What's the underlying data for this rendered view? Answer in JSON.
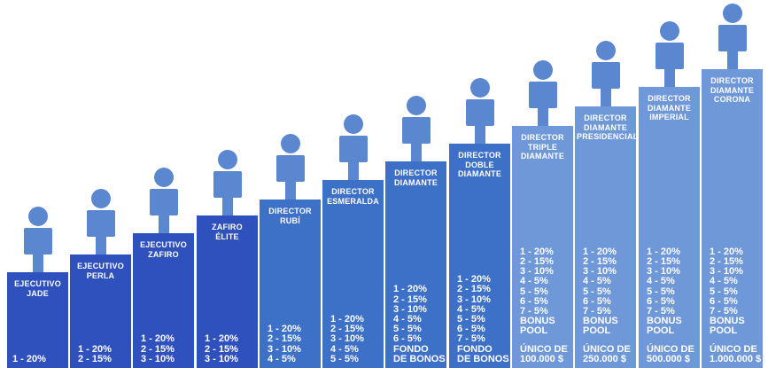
{
  "colors": {
    "dark": "#2f51bd",
    "mid": "#3d70c7",
    "light": "#6f98d9",
    "person": "#5b86d0",
    "background": "#ffffff"
  },
  "ranks": [
    {
      "title": "EJECUTIVO\nJADE",
      "lines": [],
      "extra": [],
      "bottom": [
        "1 - 20%"
      ],
      "shade": "dark"
    },
    {
      "title": "EJECUTIVO\nPERLA",
      "lines": [],
      "extra": [],
      "bottom": [
        "1 - 20%",
        "2 - 15%"
      ],
      "shade": "dark"
    },
    {
      "title": "EJECUTIVO\nZAFIRO",
      "lines": [
        "1 - 20%",
        "2 - 15%",
        "3 - 10%"
      ],
      "extra": [],
      "bottom": [],
      "shade": "dark"
    },
    {
      "title": "ZAFIRO\nÉLITE",
      "lines": [
        "1 - 20%",
        "2 - 15%",
        "3 - 10%"
      ],
      "extra": [],
      "bottom": [],
      "shade": "dark"
    },
    {
      "title": "DIRECTOR\nRUBÍ",
      "lines": [
        "1 - 20%",
        "2 - 15%",
        "3 - 10%",
        "4 - 5%"
      ],
      "extra": [],
      "bottom": [],
      "shade": "mid"
    },
    {
      "title": "DIRECTOR\nESMERALDA",
      "lines": [
        "1 - 20%",
        "2 - 15%",
        "3 - 10%",
        "4 - 5%",
        "5 - 5%"
      ],
      "extra": [],
      "bottom": [],
      "shade": "mid"
    },
    {
      "title": "DIRECTOR\nDIAMANTE",
      "lines": [
        "1 - 20%",
        "2 - 15%",
        "3 - 10%",
        "4 - 5%",
        "5 - 5%",
        "6 - 5%"
      ],
      "extra": [
        "FONDO",
        "DE BONOS"
      ],
      "bottom": [],
      "shade": "mid"
    },
    {
      "title": "DIRECTOR\nDOBLE\nDIAMANTE",
      "lines": [
        "1 - 20%",
        "2 - 15%",
        "3 - 10%",
        "4 - 5%",
        "5 - 5%",
        "6 - 5%",
        "7 - 5%"
      ],
      "extra": [
        "FONDO",
        "DE BONOS"
      ],
      "bottom": [],
      "shade": "mid"
    },
    {
      "title": "DIRECTOR\nTRIPLE\nDIAMANTE",
      "lines": [
        "1 - 20%",
        "2 - 15%",
        "3 - 10%",
        "4 - 5%",
        "5 - 5%",
        "6 - 5%",
        "7 - 5%"
      ],
      "extra": [
        "BONUS",
        "POOL"
      ],
      "bottom": [
        "ÚNICO DE",
        "100.000 $"
      ],
      "shade": "light"
    },
    {
      "title": "DIRECTOR\nDIAMANTE\nPRESIDENCIAL",
      "lines": [
        "1 - 20%",
        "2 - 15%",
        "3 - 10%",
        "4 - 5%",
        "5 - 5%",
        "6 - 5%",
        "7 - 5%"
      ],
      "extra": [
        "BONUS",
        "POOL"
      ],
      "bottom": [
        "ÚNICO DE",
        "250.000 $"
      ],
      "shade": "light"
    },
    {
      "title": "DIRECTOR\nDIAMANTE\nIMPERIAL",
      "lines": [
        "1 - 20%",
        "2 - 15%",
        "3 - 10%",
        "4 - 5%",
        "5 - 5%",
        "6 - 5%",
        "7 - 5%"
      ],
      "extra": [
        "BONUS",
        "POOL"
      ],
      "bottom": [
        "ÚNICO DE",
        "500.000 $"
      ],
      "shade": "light"
    },
    {
      "title": "DIRECTOR\nDIAMANTE\nCORONA",
      "lines": [
        "1 - 20%",
        "2 - 15%",
        "3 - 10%",
        "4 - 5%",
        "5 - 5%",
        "6 - 5%",
        "7 - 5%"
      ],
      "extra": [
        "BONUS",
        "POOL"
      ],
      "bottom": [
        "ÚNICO DE",
        "1.000.000 $"
      ],
      "shade": "light"
    }
  ]
}
